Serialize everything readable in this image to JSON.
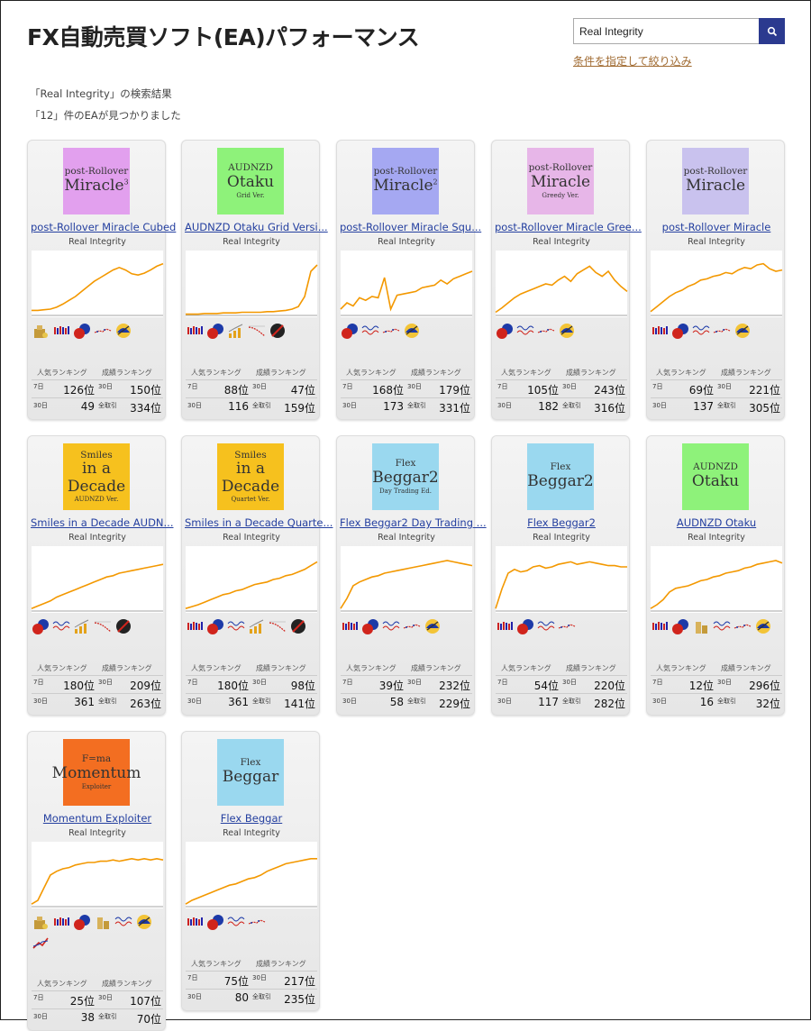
{
  "header": {
    "title": "FX自動売買ソフト(EA)パフォーマンス"
  },
  "search": {
    "value": "Real Integrity",
    "filter_link": "条件を指定して絞り込み"
  },
  "results": {
    "line1": "「Real Integrity」の検索結果",
    "line2": "「12」件のEAが見つかりました"
  },
  "labels": {
    "popularity": "人気ランキング",
    "performance": "成績ランキング",
    "d7": "7日",
    "d30": "30日",
    "d30b": "30日",
    "all": "全取引"
  },
  "colors": {
    "accent": "#2b3a8f",
    "chart_line": "#f39800",
    "link": "#2540a0"
  },
  "eas": [
    {
      "name": "post-Rollover Miracle Cubed",
      "developer": "Real Integrity",
      "thumb": {
        "bg": "#e2a0ee",
        "line1": "post-Rollover",
        "line2": "Miracle",
        "sup": "3",
        "line3": ""
      },
      "icons": [
        "coin-bag-icon",
        "candlestick-icon",
        "chat-icon",
        "line-dots-icon",
        "scale-icon"
      ],
      "pop7": "126位",
      "pop30": "49",
      "perf30": "150位",
      "perfAll": "334位",
      "curve": [
        0.08,
        0.08,
        0.09,
        0.1,
        0.13,
        0.18,
        0.24,
        0.3,
        0.38,
        0.46,
        0.54,
        0.6,
        0.66,
        0.72,
        0.76,
        0.72,
        0.66,
        0.64,
        0.67,
        0.72,
        0.78,
        0.82
      ]
    },
    {
      "name": "AUDNZD Otaku Grid Versi...",
      "developer": "Real Integrity",
      "thumb": {
        "bg": "#8ef27a",
        "line1": "AUDNZD",
        "line2": "Otaku",
        "sup": "",
        "line3": "Grid Ver."
      },
      "icons": [
        "candlestick-icon",
        "chat-icon",
        "bar-rise-icon",
        "line-drop-icon",
        "stop-icon"
      ],
      "pop7": "88位",
      "pop30": "116",
      "perf30": "47位",
      "perfAll": "159位",
      "curve": [
        0.02,
        0.02,
        0.02,
        0.03,
        0.03,
        0.03,
        0.04,
        0.04,
        0.04,
        0.05,
        0.05,
        0.05,
        0.05,
        0.06,
        0.06,
        0.07,
        0.08,
        0.1,
        0.14,
        0.3,
        0.7,
        0.8
      ]
    },
    {
      "name": "post-Rollover Miracle Squ...",
      "developer": "Real Integrity",
      "thumb": {
        "bg": "#a5a8f2",
        "line1": "post-Rollover",
        "line2": "Miracle",
        "sup": "2",
        "line3": ""
      },
      "icons": [
        "chat-icon",
        "wave-text-icon",
        "line-dots-icon",
        "scale-icon"
      ],
      "pop7": "168位",
      "pop30": "173",
      "perf30": "179位",
      "perfAll": "331位",
      "curve": [
        0.1,
        0.2,
        0.15,
        0.28,
        0.24,
        0.3,
        0.28,
        0.6,
        0.1,
        0.32,
        0.34,
        0.36,
        0.38,
        0.44,
        0.46,
        0.48,
        0.56,
        0.5,
        0.58,
        0.62,
        0.66,
        0.7
      ]
    },
    {
      "name": "post-Rollover Miracle Gree...",
      "developer": "Real Integrity",
      "thumb": {
        "bg": "#e7b6e8",
        "line1": "post-Rollover",
        "line2": "Miracle",
        "sup": "",
        "line3": "Greedy Ver."
      },
      "icons": [
        "chat-icon",
        "wave-text-icon",
        "line-dots-icon",
        "scale-icon"
      ],
      "pop7": "105位",
      "pop30": "182",
      "perf30": "243位",
      "perfAll": "316位",
      "curve": [
        0.05,
        0.12,
        0.2,
        0.28,
        0.34,
        0.38,
        0.42,
        0.46,
        0.5,
        0.48,
        0.56,
        0.62,
        0.54,
        0.66,
        0.72,
        0.78,
        0.68,
        0.62,
        0.7,
        0.56,
        0.46,
        0.38
      ]
    },
    {
      "name": "post-Rollover Miracle",
      "developer": "Real Integrity",
      "thumb": {
        "bg": "#c9c2ee",
        "line1": "post-Rollover",
        "line2": "Miracle",
        "sup": "",
        "line3": ""
      },
      "icons": [
        "candlestick-icon",
        "chat-icon",
        "wave-text-icon",
        "line-dots-icon",
        "scale-icon"
      ],
      "pop7": "69位",
      "pop30": "137",
      "perf30": "221位",
      "perfAll": "305位",
      "curve": [
        0.06,
        0.14,
        0.22,
        0.3,
        0.36,
        0.4,
        0.46,
        0.5,
        0.56,
        0.58,
        0.62,
        0.64,
        0.68,
        0.66,
        0.72,
        0.76,
        0.74,
        0.8,
        0.82,
        0.74,
        0.7,
        0.72
      ]
    },
    {
      "name": "Smiles in a Decade AUDN...",
      "developer": "Real Integrity",
      "thumb": {
        "bg": "#f6c11e",
        "line1": "Smiles",
        "line2": "in a Decade",
        "sup": "",
        "line3": "AUDNZD Ver."
      },
      "icons": [
        "chat-icon",
        "wave-text-icon",
        "bar-rise-icon",
        "line-drop-icon",
        "stop-icon"
      ],
      "pop7": "180位",
      "pop30": "361",
      "perf30": "209位",
      "perfAll": "263位",
      "curve": [
        0.04,
        0.08,
        0.12,
        0.16,
        0.22,
        0.26,
        0.3,
        0.34,
        0.38,
        0.42,
        0.46,
        0.5,
        0.54,
        0.56,
        0.6,
        0.62,
        0.64,
        0.66,
        0.68,
        0.7,
        0.72,
        0.74
      ]
    },
    {
      "name": "Smiles in a Decade Quarte...",
      "developer": "Real Integrity",
      "thumb": {
        "bg": "#f6c11e",
        "line1": "Smiles",
        "line2": "in a Decade",
        "sup": "",
        "line3": "Quartet Ver."
      },
      "icons": [
        "candlestick-icon",
        "chat-icon",
        "wave-text-icon",
        "bar-rise-icon",
        "line-drop-icon",
        "stop-icon"
      ],
      "pop7": "180位",
      "pop30": "361",
      "perf30": "98位",
      "perfAll": "141位",
      "curve": [
        0.04,
        0.07,
        0.1,
        0.14,
        0.18,
        0.22,
        0.26,
        0.28,
        0.32,
        0.34,
        0.38,
        0.42,
        0.44,
        0.46,
        0.5,
        0.52,
        0.56,
        0.58,
        0.62,
        0.66,
        0.72,
        0.78
      ]
    },
    {
      "name": "Flex Beggar2 Day Trading ...",
      "developer": "Real Integrity",
      "thumb": {
        "bg": "#9ad8ef",
        "line1": "Flex",
        "line2": "Beggar2",
        "sup": "",
        "line3": "Day Trading Ed."
      },
      "icons": [
        "candlestick-icon",
        "chat-icon",
        "wave-text-icon",
        "line-dots-icon",
        "scale-icon"
      ],
      "pop7": "39位",
      "pop30": "58",
      "perf30": "232位",
      "perfAll": "229位",
      "curve": [
        0.04,
        0.2,
        0.4,
        0.46,
        0.5,
        0.54,
        0.56,
        0.6,
        0.62,
        0.64,
        0.66,
        0.68,
        0.7,
        0.72,
        0.74,
        0.76,
        0.78,
        0.8,
        0.78,
        0.76,
        0.74,
        0.72
      ]
    },
    {
      "name": "Flex Beggar2",
      "developer": "Real Integrity",
      "thumb": {
        "bg": "#9ad8ef",
        "line1": "Flex",
        "line2": "Beggar2",
        "sup": "",
        "line3": ""
      },
      "icons": [
        "candlestick-icon",
        "chat-icon",
        "wave-text-icon",
        "line-dots-icon"
      ],
      "pop7": "54位",
      "pop30": "117",
      "perf30": "220位",
      "perfAll": "282位",
      "curve": [
        0.04,
        0.35,
        0.6,
        0.66,
        0.62,
        0.64,
        0.7,
        0.72,
        0.68,
        0.7,
        0.74,
        0.76,
        0.78,
        0.74,
        0.76,
        0.78,
        0.76,
        0.74,
        0.72,
        0.72,
        0.7,
        0.7
      ]
    },
    {
      "name": "AUDNZD Otaku",
      "developer": "Real Integrity",
      "thumb": {
        "bg": "#8ef27a",
        "line1": "AUDNZD",
        "line2": "Otaku",
        "sup": "",
        "line3": ""
      },
      "icons": [
        "candlestick-icon",
        "chat-icon",
        "coin-stack-icon",
        "wave-text-icon",
        "line-dots-icon",
        "scale-icon"
      ],
      "pop7": "12位",
      "pop30": "16",
      "perf30": "296位",
      "perfAll": "32位",
      "curve": [
        0.04,
        0.1,
        0.18,
        0.3,
        0.36,
        0.38,
        0.4,
        0.44,
        0.48,
        0.5,
        0.54,
        0.56,
        0.6,
        0.62,
        0.64,
        0.68,
        0.7,
        0.74,
        0.76,
        0.78,
        0.8,
        0.76
      ]
    },
    {
      "name": "Momentum Exploiter",
      "developer": "Real Integrity",
      "thumb": {
        "bg": "#f36e21",
        "line1": "F=ma",
        "line2": "Momentum",
        "sup": "",
        "line3": "Exploiter"
      },
      "icons": [
        "coin-bag-icon",
        "candlestick-icon",
        "chat-icon",
        "coin-stack-icon",
        "wave-text-icon",
        "scale-icon",
        "trend-icon"
      ],
      "pop7": "25位",
      "pop30": "38",
      "perf30": "107位",
      "perfAll": "70位",
      "curve": [
        0.04,
        0.1,
        0.3,
        0.5,
        0.56,
        0.6,
        0.62,
        0.66,
        0.68,
        0.7,
        0.7,
        0.72,
        0.72,
        0.74,
        0.72,
        0.74,
        0.76,
        0.74,
        0.76,
        0.74,
        0.76,
        0.74
      ]
    },
    {
      "name": "Flex Beggar",
      "developer": "Real Integrity",
      "thumb": {
        "bg": "#9ad8ef",
        "line1": "Flex",
        "line2": "Beggar",
        "sup": "",
        "line3": ""
      },
      "icons": [
        "candlestick-icon",
        "chat-icon",
        "wave-text-icon",
        "line-dots-icon"
      ],
      "pop7": "75位",
      "pop30": "80",
      "perf30": "217位",
      "perfAll": "235位",
      "curve": [
        0.04,
        0.1,
        0.14,
        0.18,
        0.22,
        0.26,
        0.3,
        0.34,
        0.36,
        0.4,
        0.44,
        0.46,
        0.5,
        0.56,
        0.6,
        0.64,
        0.68,
        0.7,
        0.72,
        0.74,
        0.76,
        0.76
      ]
    }
  ]
}
